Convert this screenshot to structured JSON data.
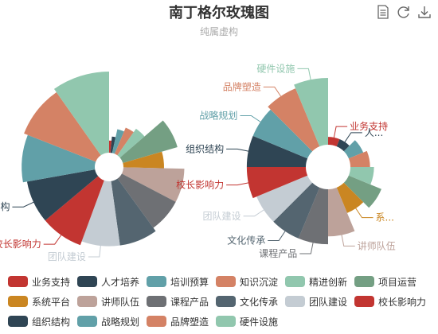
{
  "title": "南丁格尔玫瑰图",
  "subtitle": "纯属虚构",
  "toolbox": [
    {
      "name": "data-view-icon"
    },
    {
      "name": "restore-icon"
    },
    {
      "name": "save-image-icon"
    }
  ],
  "chart_data": {
    "type": "pie",
    "subtype": "nightingale-rose",
    "categories": [
      "业务支持",
      "人才培养",
      "培训预算",
      "知识沉淀",
      "精进创新",
      "项目运营",
      "系统平台",
      "讲师队伍",
      "课程产品",
      "文化传承",
      "团队建设",
      "校长影响力",
      "组织结构",
      "战略规划",
      "品牌塑造",
      "硬件设施"
    ],
    "colors": [
      "#c23531",
      "#2f4554",
      "#61a0a8",
      "#d48265",
      "#91c7ae",
      "#749f83",
      "#ca8622",
      "#bda29a",
      "#6e7074",
      "#546570",
      "#c4ccd3",
      "#c23531",
      "#2f4554",
      "#61a0a8",
      "#d48265",
      "#91c7ae"
    ],
    "series": [
      {
        "roseType": "radius",
        "values": [
          3,
          4,
          6,
          7,
          8,
          14,
          10,
          15,
          15,
          16,
          16,
          17,
          17,
          18,
          19,
          20
        ]
      },
      {
        "roseType": "area",
        "values": [
          2,
          2,
          4,
          5,
          6,
          9,
          7,
          12,
          14,
          14,
          14,
          15,
          15,
          15,
          16,
          17
        ]
      }
    ],
    "labels": {
      "left": [
        {
          "category_index": 12,
          "text": "组织结构"
        },
        {
          "category_index": 11,
          "text": "校长影响力"
        },
        {
          "category_index": 10,
          "text": "团队建设"
        }
      ],
      "right": [
        {
          "category_index": 15,
          "text": "硬件设施"
        },
        {
          "category_index": 14,
          "text": "品牌塑造"
        },
        {
          "category_index": 0,
          "text": "业务支持"
        },
        {
          "category_index": 1,
          "text": "人..."
        },
        {
          "category_index": 13,
          "text": "战略规划"
        },
        {
          "category_index": 12,
          "text": "组织结构"
        },
        {
          "category_index": 11,
          "text": "校长影响力"
        },
        {
          "category_index": 10,
          "text": "团队建设"
        },
        {
          "category_index": 9,
          "text": "文化传承"
        },
        {
          "category_index": 8,
          "text": "课程产品"
        },
        {
          "category_index": 7,
          "text": "讲师队伍"
        },
        {
          "category_index": 6,
          "text": "系..."
        }
      ]
    },
    "legend_position": "bottom"
  }
}
